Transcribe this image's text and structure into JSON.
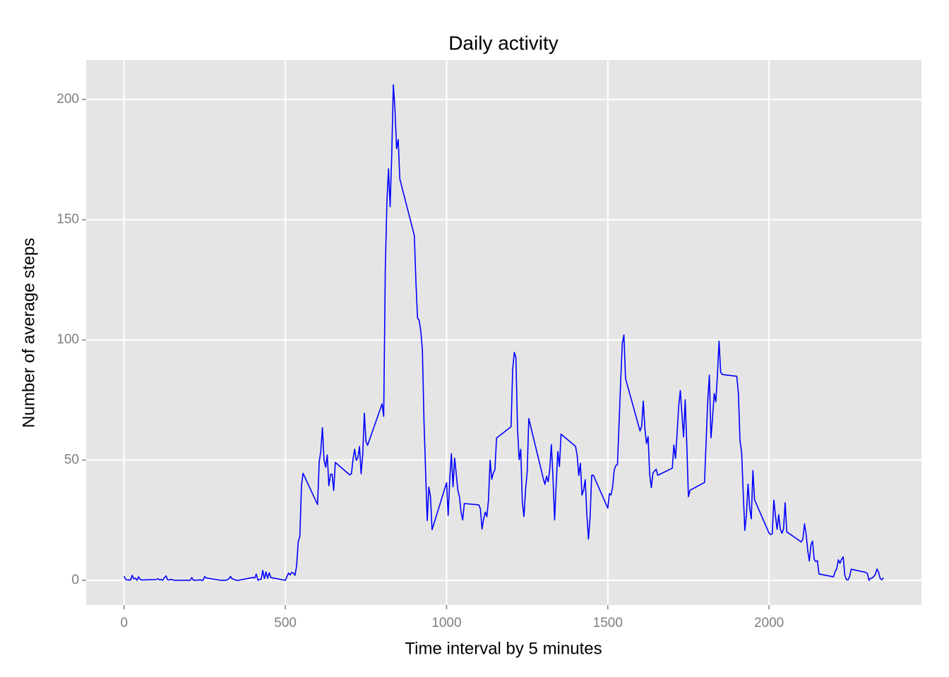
{
  "chart_data": {
    "type": "line",
    "title": "Daily activity",
    "x_label": "Time interval by 5 minutes",
    "y_label": "Number of average steps",
    "color": "#0000ff",
    "grid": true,
    "xlim": [
      -117.75,
      2472.75
    ],
    "ylim": [
      -10.31,
      216.48
    ],
    "xticks": [
      0,
      500,
      1000,
      1500,
      2000
    ],
    "yticks": [
      0,
      50,
      100,
      150,
      200
    ],
    "x": [
      0,
      5,
      10,
      15,
      20,
      25,
      30,
      35,
      40,
      45,
      50,
      55,
      100,
      105,
      110,
      115,
      120,
      125,
      130,
      135,
      140,
      145,
      150,
      155,
      200,
      205,
      210,
      215,
      220,
      225,
      230,
      235,
      240,
      245,
      250,
      255,
      300,
      305,
      310,
      315,
      320,
      325,
      330,
      335,
      340,
      345,
      350,
      355,
      400,
      405,
      410,
      415,
      420,
      425,
      430,
      435,
      440,
      445,
      450,
      455,
      500,
      505,
      510,
      515,
      520,
      525,
      530,
      535,
      540,
      545,
      550,
      555,
      600,
      605,
      610,
      615,
      620,
      625,
      630,
      635,
      640,
      645,
      650,
      655,
      700,
      705,
      710,
      715,
      720,
      725,
      730,
      735,
      740,
      745,
      750,
      755,
      800,
      805,
      810,
      815,
      820,
      825,
      830,
      835,
      840,
      845,
      850,
      855,
      900,
      905,
      910,
      915,
      920,
      925,
      930,
      935,
      940,
      945,
      950,
      955,
      1000,
      1005,
      1010,
      1015,
      1020,
      1025,
      1030,
      1035,
      1040,
      1045,
      1050,
      1055,
      1100,
      1105,
      1110,
      1115,
      1120,
      1125,
      1130,
      1135,
      1140,
      1145,
      1150,
      1155,
      1200,
      1205,
      1210,
      1215,
      1220,
      1225,
      1230,
      1235,
      1240,
      1245,
      1250,
      1255,
      1300,
      1305,
      1310,
      1315,
      1320,
      1325,
      1330,
      1335,
      1340,
      1345,
      1350,
      1355,
      1400,
      1405,
      1410,
      1415,
      1420,
      1425,
      1430,
      1435,
      1440,
      1445,
      1450,
      1455,
      1500,
      1505,
      1510,
      1515,
      1520,
      1525,
      1530,
      1535,
      1540,
      1545,
      1550,
      1555,
      1600,
      1605,
      1610,
      1615,
      1620,
      1625,
      1630,
      1635,
      1640,
      1645,
      1650,
      1655,
      1700,
      1705,
      1710,
      1715,
      1720,
      1725,
      1730,
      1735,
      1740,
      1745,
      1750,
      1755,
      1800,
      1805,
      1810,
      1815,
      1820,
      1825,
      1830,
      1835,
      1840,
      1845,
      1850,
      1855,
      1900,
      1905,
      1910,
      1915,
      1920,
      1925,
      1930,
      1935,
      1940,
      1945,
      1950,
      1955,
      2000,
      2005,
      2010,
      2015,
      2020,
      2025,
      2030,
      2035,
      2040,
      2045,
      2050,
      2055,
      2100,
      2105,
      2110,
      2115,
      2120,
      2125,
      2130,
      2135,
      2140,
      2145,
      2150,
      2155,
      2200,
      2205,
      2210,
      2215,
      2220,
      2225,
      2230,
      2235,
      2240,
      2245,
      2250,
      2255,
      2300,
      2305,
      2310,
      2315,
      2320,
      2325,
      2330,
      2335,
      2340,
      2345,
      2350,
      2355
    ],
    "values": [
      1.72,
      0.34,
      0.13,
      0.15,
      0.08,
      2.09,
      0.53,
      0.87,
      0,
      1.47,
      0.3,
      0.13,
      0.32,
      0.68,
      0.15,
      0.34,
      0,
      1.11,
      1.83,
      0.17,
      0.17,
      0.38,
      0.26,
      0,
      0,
      0,
      1.13,
      0,
      0,
      0.13,
      0,
      0.23,
      0,
      0,
      1.55,
      0.94,
      0,
      0,
      0,
      0,
      0.21,
      0.62,
      1.62,
      0.58,
      0.49,
      0.08,
      0,
      0,
      1.19,
      0.94,
      2.57,
      0,
      0.34,
      0.36,
      4.11,
      0.66,
      3.49,
      0.83,
      3.11,
      1.11,
      0,
      1.57,
      3,
      2.25,
      3.32,
      2.96,
      2.09,
      6.06,
      16.02,
      18.34,
      39.45,
      44.49,
      31.49,
      49.26,
      53.77,
      63.45,
      49.96,
      47.08,
      52.15,
      39.34,
      44.02,
      44.17,
      37.36,
      49.04,
      43.81,
      44.38,
      50.51,
      54.51,
      49.92,
      50.98,
      55.68,
      44.32,
      52.26,
      69.55,
      57.85,
      56.15,
      73.38,
      68.21,
      129.43,
      157.53,
      171.15,
      155.4,
      177.3,
      206.17,
      195.92,
      179.57,
      183.4,
      167.02,
      143.45,
      124.04,
      109.11,
      108.11,
      103.72,
      95.96,
      66.21,
      45.23,
      24.79,
      38.75,
      34.98,
      21.06,
      40.57,
      26.98,
      42.42,
      52.66,
      38.92,
      50.79,
      44.28,
      37.42,
      34.7,
      28.34,
      25.09,
      31.94,
      31.36,
      29.68,
      21.32,
      25.55,
      28.38,
      26.47,
      33.43,
      49.98,
      42.04,
      44.6,
      46.04,
      59.19,
      63.87,
      87.7,
      94.85,
      92.77,
      63.4,
      50.17,
      54.47,
      32.42,
      26.53,
      37.74,
      45.06,
      67.28,
      42.34,
      39.89,
      43.26,
      40.98,
      46.25,
      56.43,
      42.75,
      25.13,
      39.96,
      53.55,
      47.32,
      60.81,
      55.75,
      51.96,
      43.58,
      48.7,
      35.47,
      37.55,
      41.85,
      27.51,
      17.11,
      26.08,
      43.62,
      43.77,
      30.02,
      36.08,
      35.49,
      38.85,
      45.96,
      47.75,
      48.13,
      65.32,
      82.91,
      98.66,
      102.11,
      83.96,
      62.13,
      64.13,
      74.55,
      63.17,
      56.91,
      59.77,
      43.87,
      38.57,
      44.66,
      45.45,
      46.21,
      43.68,
      46.62,
      56.3,
      50.72,
      61.23,
      72.72,
      78.94,
      68.94,
      59.66,
      75.09,
      56.51,
      34.77,
      37.45,
      40.68,
      58.02,
      74.7,
      85.32,
      59.26,
      67.77,
      77.7,
      74.25,
      85.34,
      99.45,
      86.58,
      85.6,
      84.87,
      77.83,
      58.04,
      53.36,
      36.32,
      20.72,
      27.4,
      40.02,
      30.21,
      25.55,
      45.66,
      33.53,
      19.62,
      19.02,
      19.34,
      33.34,
      26.81,
      21.17,
      27.3,
      21.34,
      19.55,
      21.32,
      32.3,
      20.15,
      15.94,
      17.23,
      23.45,
      19.25,
      12.45,
      8.02,
      14.66,
      16.3,
      8.68,
      7.79,
      8.13,
      2.62,
      1.45,
      3.68,
      4.81,
      8.51,
      7.08,
      8.7,
      9.75,
      2.21,
      0.32,
      0.11,
      1.6,
      4.6,
      3.3,
      2.85,
      0,
      0.83,
      0.96,
      1.58,
      2.6,
      4.7,
      3.3,
      0.64,
      0.23,
      1.08
    ]
  }
}
